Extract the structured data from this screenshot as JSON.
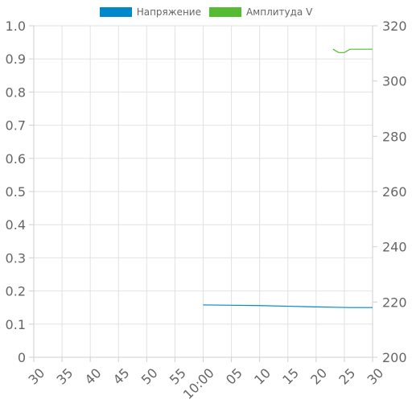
{
  "chart_data": {
    "type": "line",
    "title": "",
    "legend": {
      "position": "top-center",
      "items": [
        {
          "label": "Напряжение",
          "color": "#0088cc"
        },
        {
          "label": "Амплитуда V",
          "color": "#55bb33"
        }
      ]
    },
    "grid": true,
    "x_axis": {
      "label": "",
      "min": 0,
      "max": 60,
      "ticks": [
        {
          "label": "30",
          "pos": 0
        },
        {
          "label": "35",
          "pos": 5
        },
        {
          "label": "40",
          "pos": 10
        },
        {
          "label": "45",
          "pos": 15
        },
        {
          "label": "50",
          "pos": 20
        },
        {
          "label": "55",
          "pos": 25
        },
        {
          "label": "10:00",
          "pos": 30
        },
        {
          "label": "05",
          "pos": 35
        },
        {
          "label": "10",
          "pos": 40
        },
        {
          "label": "15",
          "pos": 45
        },
        {
          "label": "20",
          "pos": 50
        },
        {
          "label": "25",
          "pos": 55
        },
        {
          "label": "30",
          "pos": 60
        }
      ]
    },
    "y_axis_left": {
      "label": "",
      "min": 0,
      "max": 1,
      "ticks": [
        "0",
        "0.1",
        "0.2",
        "0.3",
        "0.4",
        "0.5",
        "0.6",
        "0.7",
        "0.8",
        "0.9",
        "1.0"
      ]
    },
    "y_axis_right": {
      "label": "",
      "min": 200,
      "max": 320,
      "ticks": [
        "200",
        "220",
        "240",
        "260",
        "280",
        "300",
        "320"
      ]
    },
    "series": [
      {
        "name": "Напряжение",
        "axis": "left",
        "color": "#0088cc",
        "points": [
          [
            30,
            0.158
          ],
          [
            35,
            0.157
          ],
          [
            40,
            0.156
          ],
          [
            45,
            0.154
          ],
          [
            50,
            0.152
          ],
          [
            53,
            0.151
          ],
          [
            56,
            0.15
          ],
          [
            60,
            0.15
          ]
        ]
      },
      {
        "name": "Амплитуда V",
        "axis": "right",
        "color": "#55bb33",
        "points": [
          [
            53,
            311.5
          ],
          [
            54,
            310.3
          ],
          [
            55,
            310.3
          ],
          [
            56,
            311.5
          ],
          [
            58,
            311.5
          ],
          [
            60,
            311.5
          ]
        ]
      }
    ]
  }
}
